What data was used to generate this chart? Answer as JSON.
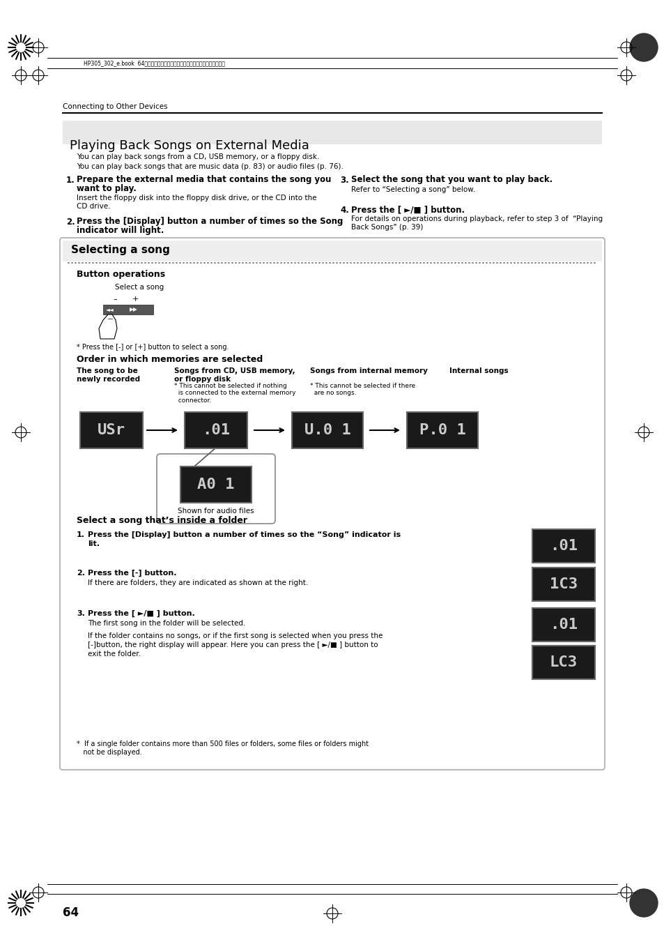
{
  "page_bg": "#ffffff",
  "header_text": "HP305_302_e.book  64ページ　２０１０年１月５日　火曜日　午後１２時２分",
  "section_label": "Connecting to Other Devices",
  "title": "Playing Back Songs on External Media",
  "title_bg": "#e8e8e8",
  "intro1": "You can play back songs from a CD, USB memory, or a floppy disk.",
  "intro2": "You can play back songs that are music data (p. 83) or audio files (p. 76).",
  "step1_num": "1.",
  "step1_bold": "Prepare the external media that contains the song you\nwant to play.",
  "step1_detail": "Insert the floppy disk into the floppy disk drive, or the CD into the\nCD drive.",
  "step2_num": "2.",
  "step2_bold": "Press the [Display] button a number of times so the Song\nindicator will light.",
  "step3_num": "3.",
  "step3_bold": "Select the song that you want to play back.",
  "step3_detail": "Refer to “Selecting a song” below.",
  "step4_num": "4.",
  "step4_bold": "Press the [ ►/■ ] button.",
  "step4_detail": "For details on operations during playback, refer to step 3 of  “Playing\nBack Songs” (p. 39)",
  "box_title": "Selecting a song",
  "btn_ops_label": "Button operations",
  "select_song_label": "Select a song",
  "press_note": "* Press the [-] or [+] button to select a song.",
  "order_title": "Order in which memories are selected",
  "col1_header": "The song to be\nnewly recorded",
  "col2_header": "Songs from CD, USB memory,\nor floppy disk",
  "col2_note": "* This cannot be selected if nothing\n  is connected to the external memory\n  connector.",
  "col3_header": "Songs from internal memory",
  "col3_note": "* This cannot be selected if there\n  are no songs.",
  "col4_header": "Internal songs",
  "display1": "USr",
  "display2": ".01",
  "display3": "U.0 1",
  "display4": "P.0 1",
  "display_audio": "A0 1",
  "audio_label": "Shown for audio files",
  "folder_title": "Select a song that’s inside a folder",
  "fs1_num": "1.",
  "fs1_bold": "Press the [Display] button a number of times so the “Song” indicator is\nlit.",
  "fs2_num": "2.",
  "fs2_bold": "Press the [-] button.",
  "fs2_detail": "If there are folders, they are indicated as shown at the right.",
  "fs3_num": "3.",
  "fs3_bold": "Press the [ ►/■ ] button.",
  "fs3_detail": "The first song in the folder will be selected.",
  "fs3_note": "If the folder contains no songs, or if the first song is selected when you press the\n[-]button, the right display will appear. Here you can press the [ ►/■ ] button to\nexit the folder.",
  "footer_note": "*  If a single folder contains more than 500 files or folders, some files or folders might\n   not be displayed.",
  "page_num": "64",
  "display_bg": "#1a1a1a",
  "display_text_color": "#cccccc",
  "display_border": "#555555",
  "arrow_color": "#333333"
}
